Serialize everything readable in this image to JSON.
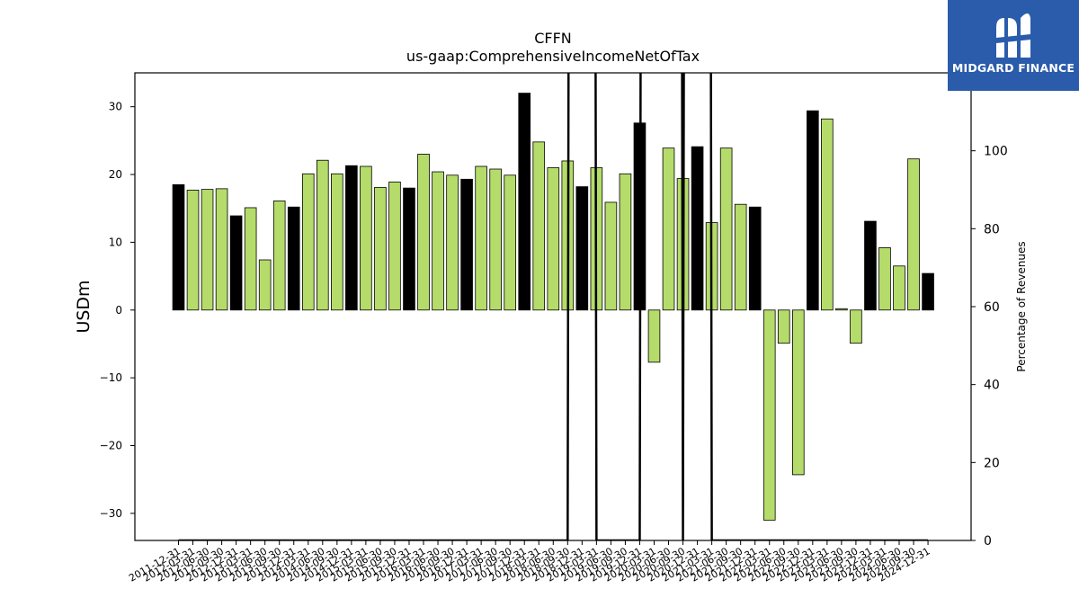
{
  "chart_data": {
    "type": "bar",
    "title": "CFFN",
    "subtitle": "us-gaap:ComprehensiveIncomeNetOfTax",
    "ylabel": "USDm",
    "y2label": "Percentage of Revenues",
    "ylim": [
      -34,
      35
    ],
    "y2lim": [
      0,
      120
    ],
    "yticks": [
      30,
      20,
      10,
      0,
      -10,
      -20,
      -30
    ],
    "y2ticks": [
      100,
      80,
      60,
      40,
      20,
      0
    ],
    "colors": {
      "annual": "#000000",
      "quarter": "#b5dc6a",
      "edge": "#000000"
    },
    "categories": [
      "2011-12-31",
      "2012-03-31",
      "2012-06-30",
      "2012-09-30",
      "2012-12-31",
      "2013-03-31",
      "2013-06-30",
      "2013-09-30",
      "2013-12-31",
      "2014-03-31",
      "2014-06-30",
      "2014-09-30",
      "2014-12-31",
      "2015-03-31",
      "2015-06-30",
      "2015-09-30",
      "2015-12-31",
      "2016-03-31",
      "2016-06-30",
      "2016-09-30",
      "2016-12-31",
      "2017-03-31",
      "2017-06-30",
      "2017-09-30",
      "2017-12-31",
      "2018-03-31",
      "2018-06-30",
      "2018-09-30",
      "2018-12-31",
      "2019-03-31",
      "2019-06-30",
      "2019-09-30",
      "2019-12-31",
      "2020-03-31",
      "2020-06-30",
      "2020-09-30",
      "2020-12-31",
      "2021-03-31",
      "2021-06-30",
      "2021-09-30",
      "2021-12-31",
      "2022-03-31",
      "2022-06-30",
      "2022-09-30",
      "2022-12-31",
      "2023-03-31",
      "2023-06-30",
      "2023-09-30",
      "2023-12-31",
      "2024-03-31",
      "2024-06-30",
      "2024-09-30",
      "2024-12-31"
    ],
    "values": [
      18.5,
      17.7,
      17.8,
      17.9,
      13.9,
      15.1,
      7.4,
      16.1,
      15.2,
      20.1,
      22.1,
      20.1,
      21.3,
      21.2,
      18.1,
      18.9,
      18.0,
      23.0,
      20.4,
      19.9,
      19.3,
      21.2,
      20.8,
      19.9,
      32.0,
      24.8,
      21.0,
      22.0,
      18.2,
      21.0,
      15.9,
      20.1,
      27.6,
      -7.7,
      23.9,
      19.4,
      24.1,
      12.9,
      23.9,
      15.6,
      15.2,
      -31.0,
      -4.9,
      -24.3,
      29.4,
      28.2,
      0.2,
      -4.9,
      13.1,
      9.2,
      6.5,
      22.3,
      5.4
    ],
    "bar_kind": [
      "annual",
      "quarter",
      "quarter",
      "quarter",
      "annual",
      "quarter",
      "quarter",
      "quarter",
      "annual",
      "quarter",
      "quarter",
      "quarter",
      "annual",
      "quarter",
      "quarter",
      "quarter",
      "annual",
      "quarter",
      "quarter",
      "quarter",
      "annual",
      "quarter",
      "quarter",
      "quarter",
      "annual",
      "quarter",
      "quarter",
      "quarter",
      "annual",
      "quarter",
      "quarter",
      "quarter",
      "annual",
      "quarter",
      "quarter",
      "quarter",
      "annual",
      "quarter",
      "quarter",
      "quarter",
      "annual",
      "quarter",
      "quarter",
      "quarter",
      "annual",
      "quarter",
      "quarter",
      "quarter",
      "annual",
      "quarter",
      "quarter",
      "quarter",
      "annual"
    ],
    "percentage_of_revenues": [
      0,
      0,
      0,
      0,
      0,
      0,
      0,
      0,
      0,
      0,
      0,
      0,
      0,
      0,
      0,
      0,
      0,
      0,
      0,
      0,
      0,
      0,
      0,
      0,
      0,
      0,
      0,
      0,
      2000,
      0,
      0,
      0,
      0,
      2000,
      2000,
      0,
      2000,
      0,
      0,
      0,
      0,
      0,
      0,
      0,
      0,
      0,
      0,
      0,
      0,
      0,
      0,
      0,
      0
    ]
  },
  "logo": {
    "text": "MIDGARD FINANCE",
    "icon": "midgard-m-logo-icon"
  }
}
